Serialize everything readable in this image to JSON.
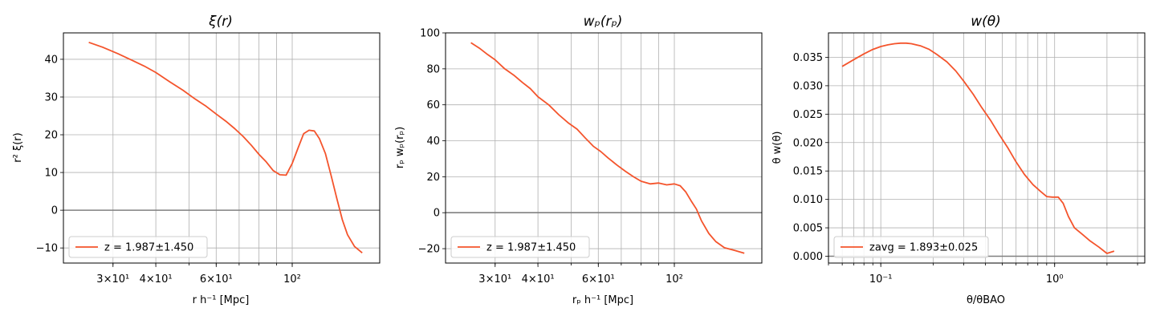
{
  "chart_data": [
    {
      "type": "line",
      "title": "ξ(r)",
      "xlabel": "r h⁻¹ [Mpc]",
      "ylabel": "r² ξ(r)",
      "x_scale": "log",
      "xlim": [
        21.5,
        180
      ],
      "ylim": [
        -14,
        47
      ],
      "x_ticks": [
        {
          "value": 30,
          "label": "3×10¹"
        },
        {
          "value": 40,
          "label": "4×10¹"
        },
        {
          "value": 60,
          "label": "6×10¹"
        },
        {
          "value": 100,
          "label": "10²"
        }
      ],
      "y_ticks": [
        -10,
        0,
        10,
        20,
        30,
        40
      ],
      "hline": 0,
      "grid": true,
      "legend_position": "lower-left",
      "series": [
        {
          "name": "z = 1.987±1.450",
          "color": "#f4542c",
          "x": [
            25.5,
            28,
            31,
            34,
            37,
            40,
            44,
            48,
            52,
            56,
            60,
            64,
            68,
            72,
            76,
            80,
            84,
            88,
            92,
            96,
            100,
            104,
            108,
            112,
            116,
            120,
            125,
            130,
            135,
            140,
            145,
            152,
            160
          ],
          "y": [
            44.5,
            43.2,
            41.5,
            39.8,
            38.2,
            36.5,
            34.0,
            31.8,
            29.5,
            27.6,
            25.5,
            23.6,
            21.6,
            19.5,
            17.2,
            14.8,
            12.8,
            10.5,
            9.4,
            9.3,
            12.4,
            16.5,
            20.3,
            21.2,
            21.0,
            19.0,
            15.0,
            9.0,
            3.0,
            -2.5,
            -6.5,
            -9.6,
            -11.3
          ]
        }
      ]
    },
    {
      "type": "line",
      "title": "wₚ(rₚ)",
      "xlabel": "rₚ h⁻¹ [Mpc]",
      "ylabel": "rₚ wₚ(rₚ)",
      "x_scale": "log",
      "xlim": [
        21.5,
        180
      ],
      "ylim": [
        -28,
        100
      ],
      "x_ticks": [
        {
          "value": 30,
          "label": "3×10¹"
        },
        {
          "value": 40,
          "label": "4×10¹"
        },
        {
          "value": 60,
          "label": "6×10¹"
        },
        {
          "value": 100,
          "label": "10²"
        }
      ],
      "y_ticks": [
        -20,
        0,
        20,
        40,
        60,
        80,
        100
      ],
      "hline": 0,
      "grid": true,
      "legend_position": "lower-left",
      "series": [
        {
          "name": "z = 1.987±1.450",
          "color": "#f4542c",
          "x": [
            25.5,
            27,
            28.5,
            30,
            32,
            34,
            36,
            38,
            40,
            43,
            46,
            49,
            52,
            55,
            58,
            61,
            64,
            68,
            72,
            76,
            80,
            85,
            90,
            95,
            100,
            104,
            108,
            112,
            116,
            120,
            126,
            132,
            140,
            150,
            160
          ],
          "y": [
            94.5,
            91.5,
            88.0,
            85.0,
            80.0,
            76.5,
            72.5,
            69.0,
            64.5,
            60.0,
            54.5,
            50.0,
            46.5,
            41.5,
            37.0,
            34.0,
            30.5,
            26.5,
            23.0,
            20.0,
            17.5,
            16.0,
            16.5,
            15.5,
            16.0,
            15.0,
            11.5,
            6.5,
            2.0,
            -4.5,
            -11.5,
            -16.0,
            -19.5,
            -21.0,
            -22.5
          ]
        }
      ]
    },
    {
      "type": "line",
      "title": "w(θ)",
      "xlabel": "θ/θBAO",
      "ylabel": "θ w(θ)",
      "x_scale": "log",
      "xlim": [
        0.05,
        3.3
      ],
      "ylim": [
        -0.0012,
        0.0393
      ],
      "x_ticks": [
        {
          "value": 0.1,
          "label": "10⁻¹"
        },
        {
          "value": 1,
          "label": "10⁰"
        }
      ],
      "y_ticks": [
        0.0,
        0.005,
        0.01,
        0.015,
        0.02,
        0.025,
        0.03,
        0.035
      ],
      "y_tick_labels": [
        "0.000",
        "0.005",
        "0.010",
        "0.015",
        "0.020",
        "0.025",
        "0.030",
        "0.035"
      ],
      "hline": 0,
      "grid": true,
      "legend_position": "lower-left",
      "series": [
        {
          "name": "zavg = 1.893±0.025",
          "color": "#f4542c",
          "x": [
            0.06,
            0.07,
            0.08,
            0.09,
            0.1,
            0.11,
            0.12,
            0.13,
            0.14,
            0.15,
            0.17,
            0.19,
            0.21,
            0.24,
            0.27,
            0.3,
            0.34,
            0.38,
            0.43,
            0.48,
            0.54,
            0.6,
            0.67,
            0.75,
            0.83,
            0.9,
            0.97,
            1.05,
            1.12,
            1.2,
            1.3,
            1.45,
            1.6,
            1.8,
            2.0,
            2.2
          ],
          "y": [
            0.0334,
            0.0346,
            0.0356,
            0.0364,
            0.0369,
            0.0372,
            0.0374,
            0.0375,
            0.0375,
            0.0374,
            0.037,
            0.0364,
            0.0355,
            0.0342,
            0.0326,
            0.0308,
            0.0285,
            0.0262,
            0.0238,
            0.0214,
            0.019,
            0.0166,
            0.0144,
            0.0126,
            0.0114,
            0.0105,
            0.0104,
            0.0104,
            0.0093,
            0.007,
            0.005,
            0.0038,
            0.0027,
            0.0016,
            0.0005,
            0.0009
          ]
        }
      ]
    }
  ]
}
